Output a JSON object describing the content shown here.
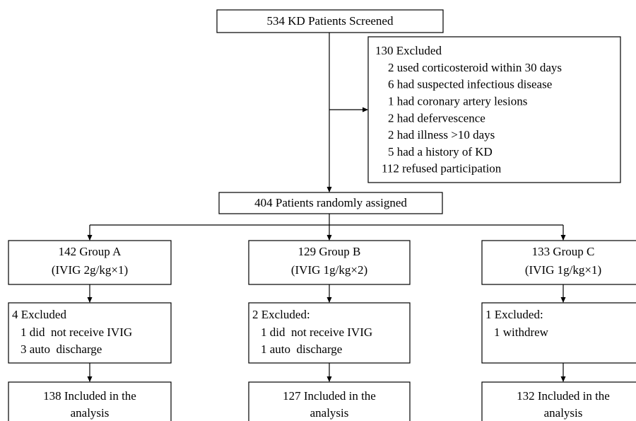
{
  "screened": {
    "label": "534 KD Patients Screened"
  },
  "excluded": {
    "title": "130 Excluded",
    "items": [
      "2 used corticosteroid within 30 days",
      "6 had suspected infectious disease",
      "1 had coronary artery lesions",
      "2 had defervescence",
      "2 had illness >10 days",
      "5 had a history of KD",
      "112 refused participation"
    ]
  },
  "randomized": {
    "label": "404 Patients randomly assigned"
  },
  "groups": [
    {
      "name": "142 Group A",
      "regimen": "(IVIG 2g/kg×1)",
      "excluded": {
        "title": "4 Excluded",
        "items": [
          "1 did  not receive IVIG",
          "3 auto  discharge"
        ]
      },
      "included": [
        "138 Included in the",
        "analysis"
      ]
    },
    {
      "name": "129 Group B",
      "regimen": "(IVIG 1g/kg×2)",
      "excluded": {
        "title": "2 Excluded:",
        "items": [
          "1 did  not receive IVIG",
          "1 auto  discharge"
        ]
      },
      "included": [
        "127 Included in the",
        "analysis"
      ]
    },
    {
      "name": "133 Group C",
      "regimen": "(IVIG 1g/kg×1)",
      "excluded": {
        "title": "1 Excluded:",
        "items": [
          "1 withdrew"
        ]
      },
      "included": [
        "132 Included in the",
        "analysis"
      ]
    }
  ]
}
